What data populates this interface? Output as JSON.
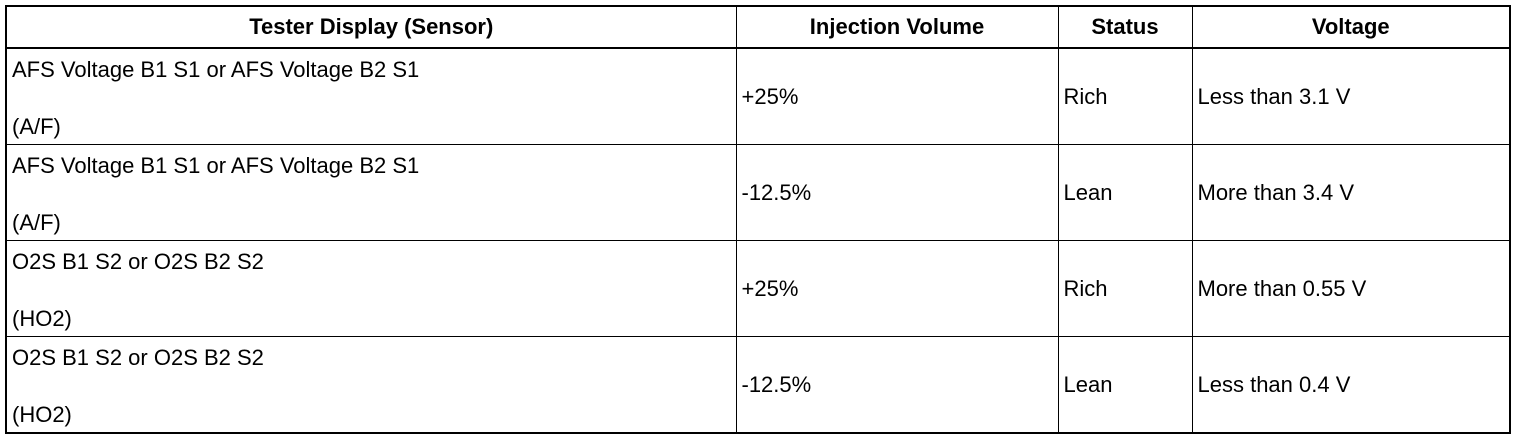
{
  "table": {
    "headers": [
      "Tester Display (Sensor)",
      "Injection Volume",
      "Status",
      "Voltage"
    ],
    "rows": [
      {
        "sensor": "AFS Voltage B1 S1 or AFS Voltage B2 S1",
        "sensor_type": "(A/F)",
        "injection": "+25%",
        "status": "Rich",
        "voltage": "Less than 3.1 V"
      },
      {
        "sensor": "AFS Voltage B1 S1 or AFS Voltage B2 S1",
        "sensor_type": "(A/F)",
        "injection": "-12.5%",
        "status": "Lean",
        "voltage": "More than 3.4 V"
      },
      {
        "sensor": "O2S B1 S2 or O2S B2 S2",
        "sensor_type": "(HO2)",
        "injection": "+25%",
        "status": "Rich",
        "voltage": "More than 0.55 V"
      },
      {
        "sensor": "O2S B1 S2 or O2S B2 S2",
        "sensor_type": "(HO2)",
        "injection": "-12.5%",
        "status": "Lean",
        "voltage": "Less than 0.4 V"
      }
    ]
  }
}
